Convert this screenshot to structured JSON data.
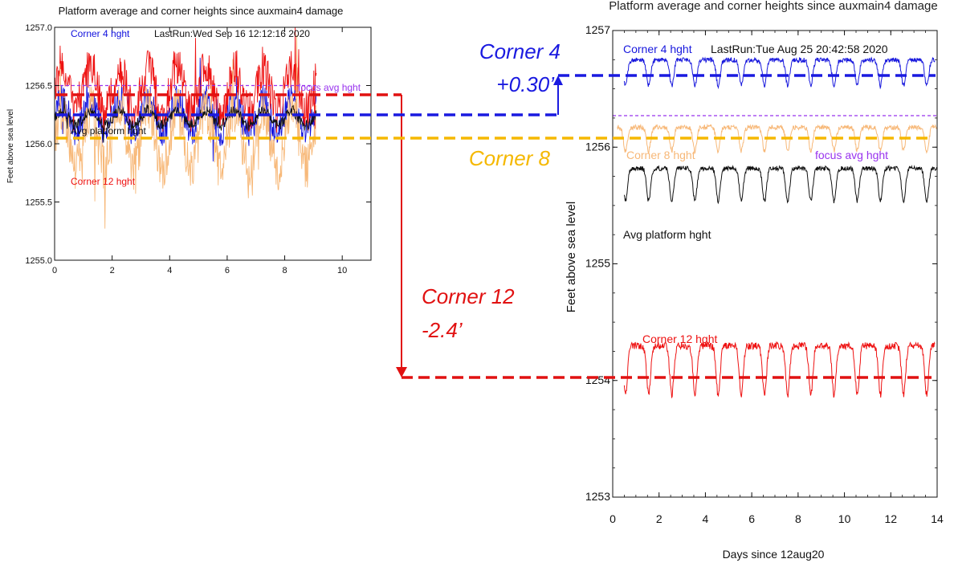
{
  "chart_data": [
    {
      "type": "line",
      "title": "Platform average and corner heights since auxmain4 damage",
      "ylabel": "Feet above sea level",
      "xlabel": "",
      "run_label": "LastRun:Wed Sep 16 12:12:16 2020",
      "xlim": [
        0,
        11
      ],
      "ylim": [
        1255.0,
        1257.0
      ],
      "xticks": [
        0,
        2,
        4,
        6,
        8,
        10
      ],
      "yticks": [
        1255.0,
        1255.5,
        1256.0,
        1256.5,
        1257.0
      ],
      "ytick_labels": [
        "1255.0",
        "1255.5",
        "1256.0",
        "1256.5",
        "1257.0"
      ],
      "grid": false,
      "series": [
        {
          "name": "Corner  4 hght",
          "color": "#1010dd",
          "x_range": [
            0,
            9.1
          ],
          "mean": 1256.24,
          "amp": 0.14,
          "noise": 0.13,
          "period": 1.0
        },
        {
          "name": "Corner 12 hght",
          "color": "#ee1111",
          "x_range": [
            0,
            9.1
          ],
          "mean": 1256.46,
          "amp": 0.2,
          "noise": 0.18,
          "period": 1.0
        },
        {
          "name": "Corner 8 hght",
          "color": "#f7b878",
          "x_range": [
            0,
            9.1
          ],
          "mean": 1256.05,
          "amp": 0.25,
          "noise": 0.2,
          "period": 1.0
        },
        {
          "name": "Avg platform hght",
          "color": "#111111",
          "x_range": [
            0,
            9.1
          ],
          "mean": 1256.22,
          "amp": 0.06,
          "noise": 0.05,
          "period": 1.0
        },
        {
          "name": "focus avg hght",
          "color": "#9933ee",
          "x_range": [
            0,
            9.1
          ],
          "mean": 1256.5,
          "amp": 0,
          "noise": 0,
          "period": 1.0
        }
      ],
      "labels": {
        "corner4": "Corner  4 hght",
        "focus": "focus avg hght",
        "avg": "Avg platform hght",
        "corner12": "Corner 12 hght"
      }
    },
    {
      "type": "line",
      "title": "Platform average and corner heights since auxmain4 damage",
      "ylabel": "Feet above sea level",
      "xlabel": "Days since 12aug20",
      "run_label": "LastRun:Tue Aug 25 20:42:58 2020",
      "xlim": [
        0,
        14
      ],
      "ylim": [
        1253,
        1257
      ],
      "xticks": [
        0,
        2,
        4,
        6,
        8,
        10,
        12,
        14
      ],
      "yticks": [
        1253,
        1254,
        1255,
        1256,
        1257
      ],
      "ytick_labels": [
        "1253",
        "1254",
        "1255",
        "1256",
        "1257"
      ],
      "grid": false,
      "series": [
        {
          "name": "Corner  4 hght",
          "color": "#1818dd",
          "x_range": [
            0.5,
            13.9
          ],
          "mean": 1256.67,
          "amp": 0.22,
          "noise": 0.02,
          "period": 1.0
        },
        {
          "name": "Corner  8 hght",
          "color": "#f7b878",
          "x_range": [
            0.2,
            14.0
          ],
          "mean": 1256.1,
          "amp": 0.2,
          "noise": 0.02,
          "period": 1.0
        },
        {
          "name": "Avg platform hght",
          "color": "#111111",
          "x_range": [
            0.5,
            14.0
          ],
          "mean": 1255.72,
          "amp": 0.28,
          "noise": 0.02,
          "period": 1.0
        },
        {
          "name": "Corner 12 hght",
          "color": "#ee1111",
          "x_range": [
            0.5,
            13.9
          ],
          "mean": 1254.15,
          "amp": 0.42,
          "noise": 0.03,
          "period": 1.0
        },
        {
          "name": "focus avg hght",
          "color": "#9933ee",
          "x_range": [
            0,
            14
          ],
          "mean": 1256.27,
          "amp": 0,
          "noise": 0,
          "period": 1.0
        }
      ],
      "labels": {
        "corner4": "Corner  4 hght",
        "corner8": "Corner  8 hght",
        "focus": "focus avg hght",
        "avg": "Avg platform hght",
        "corner12": "Corner 12 hght"
      }
    }
  ],
  "annotations": {
    "corner4_title": "Corner 4",
    "corner4_delta": "+0.30’",
    "corner8_title": "Corner 8",
    "corner12_title": "Corner 12",
    "corner12_delta": "-2.4’"
  },
  "colors": {
    "blue": "#1a1ae0",
    "orange": "#f5b800",
    "red": "#e11111",
    "purple": "#9933ee"
  }
}
